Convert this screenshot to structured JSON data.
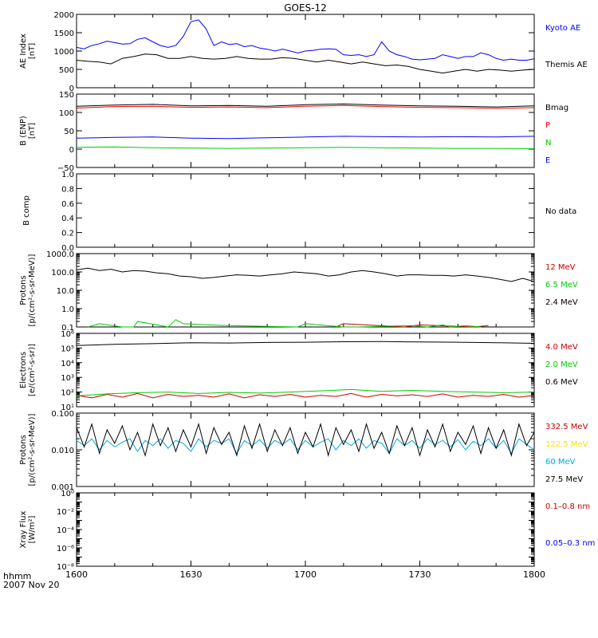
{
  "title": "GOES-12",
  "footer": {
    "label": "hhmm",
    "date": "2007 Nov 20"
  },
  "x_ticks": [
    "1600",
    "1630",
    "1700",
    "1730",
    "1800"
  ],
  "chart_data": [
    {
      "type": "line",
      "id": "ae",
      "ylabel": [
        "AE Index",
        "[nT]"
      ],
      "scale": "linear",
      "ylim": [
        0,
        2000
      ],
      "yticks": [
        0,
        500,
        1000,
        1500,
        2000
      ],
      "ytick_labels": [
        "0",
        "500",
        "1000",
        "1500",
        "2000"
      ],
      "series": [
        {
          "name": "Kyoto AE",
          "color": "#0000ff",
          "x": [
            0,
            2,
            4,
            6,
            8,
            10,
            12,
            14,
            16,
            18,
            20,
            22,
            24,
            26,
            28,
            30,
            32,
            34,
            36,
            38,
            40,
            42,
            44,
            46,
            48,
            50,
            52,
            54,
            56,
            58,
            60,
            62,
            64,
            66,
            68,
            70,
            72,
            74,
            76,
            78,
            80,
            82,
            84,
            86,
            88,
            90,
            92,
            94,
            96,
            98,
            100,
            102,
            104,
            106,
            108,
            110,
            112,
            114,
            116,
            118,
            120
          ],
          "values": [
            1100,
            1060,
            1150,
            1200,
            1270,
            1230,
            1190,
            1200,
            1320,
            1360,
            1250,
            1150,
            1100,
            1150,
            1400,
            1800,
            1850,
            1600,
            1150,
            1250,
            1180,
            1200,
            1120,
            1150,
            1080,
            1050,
            1000,
            1050,
            1000,
            950,
            1000,
            1020,
            1050,
            1060,
            1050,
            900,
            880,
            900,
            850,
            900,
            1250,
            1000,
            900,
            850,
            780,
            760,
            780,
            800,
            900,
            850,
            800,
            850,
            850,
            950,
            900,
            800,
            750,
            780,
            750,
            750,
            790
          ]
        },
        {
          "name": "Themis AE",
          "color": "#000000",
          "x": [
            0,
            3,
            6,
            9,
            12,
            15,
            18,
            21,
            24,
            27,
            30,
            33,
            36,
            39,
            42,
            45,
            48,
            51,
            54,
            57,
            60,
            63,
            66,
            69,
            72,
            75,
            78,
            81,
            84,
            87,
            90,
            93,
            96,
            99,
            102,
            105,
            108,
            111,
            114,
            117,
            120
          ],
          "values": [
            750,
            720,
            700,
            650,
            800,
            850,
            920,
            900,
            800,
            800,
            850,
            800,
            780,
            800,
            850,
            800,
            780,
            780,
            820,
            800,
            750,
            700,
            750,
            700,
            650,
            700,
            650,
            600,
            620,
            580,
            500,
            450,
            400,
            450,
            500,
            450,
            500,
            480,
            450,
            480,
            500
          ]
        }
      ]
    },
    {
      "type": "line",
      "id": "bfield",
      "ylabel": [
        "B (ENP)",
        "[nT]"
      ],
      "scale": "linear",
      "ylim": [
        -50,
        150
      ],
      "yticks": [
        -50,
        0,
        50,
        100,
        150
      ],
      "ytick_labels": [
        "−50",
        "0",
        "50",
        "100",
        "150"
      ],
      "series": [
        {
          "name": "Bmag",
          "color": "#000000",
          "x": [
            0,
            10,
            20,
            30,
            40,
            50,
            60,
            70,
            80,
            90,
            100,
            110,
            120
          ],
          "values": [
            117,
            120,
            122,
            118,
            119,
            117,
            121,
            123,
            120,
            118,
            117,
            115,
            118
          ]
        },
        {
          "name": "P",
          "color": "#ff0000",
          "x": [
            0,
            10,
            20,
            30,
            40,
            50,
            60,
            70,
            80,
            90,
            100,
            110,
            120
          ],
          "values": [
            112,
            116,
            117,
            114,
            115,
            113,
            117,
            119,
            116,
            114,
            113,
            111,
            113
          ]
        },
        {
          "name": "N",
          "color": "#00cc00",
          "x": [
            0,
            10,
            20,
            30,
            40,
            50,
            60,
            70,
            80,
            90,
            100,
            110,
            120
          ],
          "values": [
            5,
            6,
            4,
            3,
            2,
            3,
            4,
            5,
            4,
            3,
            2,
            2,
            1
          ]
        },
        {
          "name": "E",
          "color": "#0000ff",
          "x": [
            0,
            10,
            20,
            30,
            40,
            50,
            60,
            70,
            80,
            90,
            100,
            110,
            120
          ],
          "values": [
            30,
            32,
            33,
            30,
            29,
            31,
            33,
            35,
            34,
            33,
            34,
            33,
            35
          ]
        }
      ]
    },
    {
      "type": "line",
      "id": "bcomp",
      "ylabel": [
        "B comp"
      ],
      "scale": "linear",
      "ylim": [
        0,
        1
      ],
      "yticks": [
        0,
        0.2,
        0.4,
        0.6,
        0.8,
        1.0
      ],
      "ytick_labels": [
        "0.0",
        "0.2",
        "0.4",
        "0.6",
        "0.8",
        "1.0"
      ],
      "series": [],
      "legend": [
        {
          "name": "No data",
          "color": "#000000"
        }
      ]
    },
    {
      "type": "line",
      "id": "protons1",
      "ylabel": [
        "Protons",
        "[p/(cm²-s-sr-MeV)]"
      ],
      "scale": "log",
      "ylim": [
        0.1,
        1000
      ],
      "yticks": [
        0.1,
        1,
        10,
        100,
        1000
      ],
      "ytick_labels": [
        "0.1",
        "1.0",
        "10.0",
        "100.0",
        "1000.0"
      ],
      "series": [
        {
          "name": "12 MeV",
          "color": "#cc0000",
          "x": [
            68,
            70,
            86,
            90,
            104,
            108
          ],
          "values": [
            0.1,
            0.15,
            0.1,
            0.13,
            0.1,
            0.12
          ]
        },
        {
          "name": "6.5 MeV",
          "color": "#00cc00",
          "x": [
            3,
            6,
            12,
            15,
            16,
            24,
            26,
            28,
            39,
            40,
            58,
            60,
            70,
            74,
            88,
            92,
            96,
            98,
            102,
            106
          ],
          "values": [
            0.1,
            0.15,
            0.1,
            0.1,
            0.2,
            0.1,
            0.25,
            0.15,
            0.12,
            0.12,
            0.1,
            0.15,
            0.1,
            0.1,
            0.12,
            0.1,
            0.13,
            0.1,
            0.12,
            0.1
          ]
        },
        {
          "name": "2.4 MeV",
          "color": "#000000",
          "x": [
            0,
            3,
            6,
            9,
            12,
            15,
            18,
            21,
            24,
            27,
            30,
            33,
            36,
            39,
            42,
            45,
            48,
            51,
            54,
            57,
            60,
            63,
            66,
            69,
            72,
            75,
            78,
            81,
            84,
            87,
            90,
            93,
            96,
            99,
            102,
            105,
            108,
            111,
            114,
            117,
            120
          ],
          "values": [
            130,
            160,
            120,
            140,
            100,
            120,
            110,
            90,
            80,
            60,
            55,
            45,
            50,
            60,
            70,
            65,
            60,
            70,
            80,
            100,
            90,
            80,
            60,
            70,
            100,
            120,
            100,
            80,
            60,
            70,
            70,
            65,
            65,
            60,
            70,
            60,
            50,
            40,
            30,
            45,
            30
          ]
        }
      ]
    },
    {
      "type": "line",
      "id": "electrons",
      "ylabel": [
        "Electrons",
        "[e/(cm²-s-sr)]"
      ],
      "scale": "log",
      "ylim": [
        10,
        1000000
      ],
      "yticks": [
        10,
        100,
        1000,
        10000,
        100000,
        1000000
      ],
      "ytick_labels": [
        "10¹",
        "10²",
        "10³",
        "10⁴",
        "10⁵",
        "10⁶"
      ],
      "series": [
        {
          "name": "4.0 MeV",
          "color": "#cc0000",
          "x": [
            0,
            4,
            8,
            12,
            16,
            20,
            24,
            28,
            32,
            36,
            40,
            44,
            48,
            52,
            56,
            60,
            64,
            68,
            72,
            76,
            80,
            84,
            88,
            92,
            96,
            100,
            104,
            108,
            112,
            116,
            120
          ],
          "values": [
            60,
            40,
            70,
            45,
            80,
            40,
            70,
            50,
            60,
            45,
            75,
            40,
            65,
            50,
            70,
            45,
            60,
            50,
            80,
            45,
            70,
            55,
            65,
            50,
            75,
            45,
            60,
            50,
            70,
            45,
            60
          ]
        },
        {
          "name": "2.0 MeV",
          "color": "#00cc00",
          "x": [
            0,
            8,
            16,
            24,
            32,
            40,
            48,
            56,
            64,
            72,
            80,
            88,
            96,
            104,
            112,
            120
          ],
          "values": [
            55,
            75,
            90,
            100,
            80,
            95,
            85,
            100,
            120,
            150,
            110,
            130,
            110,
            100,
            90,
            100
          ]
        },
        {
          "name": "0.6 MeV",
          "color": "#000000",
          "x": [
            0,
            10,
            20,
            30,
            40,
            50,
            60,
            70,
            80,
            90,
            100,
            110,
            120
          ],
          "values": [
            150000,
            180000,
            200000,
            230000,
            220000,
            240000,
            250000,
            270000,
            280000,
            260000,
            250000,
            230000,
            210000
          ]
        }
      ]
    },
    {
      "type": "line",
      "id": "protons2",
      "ylabel": [
        "Protons",
        "[p/(cm²-s-sr-MeV)]"
      ],
      "scale": "log",
      "ylim": [
        0.001,
        0.1
      ],
      "yticks": [
        0.001,
        0.01,
        0.1
      ],
      "ytick_labels": [
        "0.001",
        "0.010",
        "0.100"
      ],
      "series": [
        {
          "name": "332.5 MeV",
          "color": "#cc0000",
          "x": [],
          "values": []
        },
        {
          "name": "122.5 MeV",
          "color": "#ffdd00",
          "x": [],
          "values": []
        },
        {
          "name": "60 MeV",
          "color": "#00aadd",
          "x": [
            0,
            2,
            4,
            6,
            8,
            10,
            12,
            14,
            16,
            18,
            20,
            22,
            24,
            26,
            28,
            30,
            32,
            34,
            36,
            38,
            40,
            42,
            44,
            46,
            48,
            50,
            52,
            54,
            56,
            58,
            60,
            62,
            64,
            66,
            68,
            70,
            72,
            74,
            76,
            78,
            80,
            82,
            84,
            86,
            88,
            90,
            92,
            94,
            96,
            98,
            100,
            102,
            104,
            106,
            108,
            110,
            112,
            114,
            116,
            118,
            120
          ],
          "values": [
            0.018,
            0.013,
            0.02,
            0.01,
            0.018,
            0.012,
            0.016,
            0.02,
            0.009,
            0.018,
            0.013,
            0.02,
            0.011,
            0.018,
            0.015,
            0.009,
            0.02,
            0.012,
            0.018,
            0.015,
            0.02,
            0.008,
            0.018,
            0.013,
            0.019,
            0.011,
            0.018,
            0.014,
            0.02,
            0.01,
            0.018,
            0.012,
            0.016,
            0.02,
            0.01,
            0.018,
            0.013,
            0.02,
            0.011,
            0.018,
            0.015,
            0.008,
            0.02,
            0.013,
            0.018,
            0.011,
            0.02,
            0.014,
            0.018,
            0.012,
            0.019,
            0.01,
            0.017,
            0.013,
            0.02,
            0.011,
            0.018,
            0.008,
            0.02,
            0.014,
            0.01
          ]
        },
        {
          "name": "27.5 MeV",
          "color": "#000000",
          "x": [
            0,
            2,
            4,
            6,
            8,
            10,
            12,
            14,
            16,
            18,
            20,
            22,
            24,
            26,
            28,
            30,
            32,
            34,
            36,
            38,
            40,
            42,
            44,
            46,
            48,
            50,
            52,
            54,
            56,
            58,
            60,
            62,
            64,
            66,
            68,
            70,
            72,
            74,
            76,
            78,
            80,
            82,
            84,
            86,
            88,
            90,
            92,
            94,
            96,
            98,
            100,
            102,
            104,
            106,
            108,
            110,
            112,
            114,
            116,
            118,
            120
          ],
          "values": [
            0.04,
            0.012,
            0.05,
            0.008,
            0.035,
            0.015,
            0.045,
            0.01,
            0.03,
            0.007,
            0.05,
            0.013,
            0.04,
            0.009,
            0.035,
            0.012,
            0.05,
            0.008,
            0.04,
            0.014,
            0.03,
            0.007,
            0.045,
            0.011,
            0.05,
            0.009,
            0.035,
            0.013,
            0.04,
            0.008,
            0.03,
            0.012,
            0.05,
            0.007,
            0.04,
            0.014,
            0.035,
            0.009,
            0.05,
            0.011,
            0.03,
            0.008,
            0.045,
            0.013,
            0.04,
            0.007,
            0.035,
            0.012,
            0.05,
            0.009,
            0.03,
            0.014,
            0.045,
            0.008,
            0.04,
            0.011,
            0.035,
            0.007,
            0.05,
            0.013,
            0.03
          ]
        }
      ]
    },
    {
      "type": "line",
      "id": "xray",
      "ylabel": [
        "Xray Flux",
        "[W/m²]"
      ],
      "scale": "log",
      "ylim": [
        1e-08,
        1
      ],
      "yticks": [
        1e-08,
        1e-07,
        1e-06,
        1e-05,
        0.0001,
        0.001,
        0.01,
        0.1,
        1
      ],
      "ytick_labels": [
        "10⁻⁸",
        "",
        "10⁻⁶",
        "",
        "10⁻⁴",
        "",
        "10⁻²",
        "",
        "10⁰"
      ],
      "series": [
        {
          "name": "0.1–0.8 nm",
          "color": "#cc0000",
          "x": [],
          "values": []
        },
        {
          "name": "0.05–0.3 nm",
          "color": "#0000ff",
          "x": [],
          "values": []
        }
      ]
    }
  ]
}
